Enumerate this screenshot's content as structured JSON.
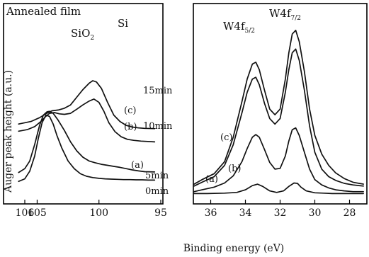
{
  "figure": {
    "title": "Annealed film",
    "ylabel": "Auger peak height (a.u.)",
    "xlabel": "Binding energy (eV)"
  },
  "chart_data": [
    {
      "type": "line",
      "panel": "Si 2p",
      "xlim": [
        106,
        95
      ],
      "xticks": [
        106,
        105,
        100,
        95
      ],
      "xtick_labels": [
        "106",
        "105",
        "100",
        "95"
      ],
      "peak_labels": [
        {
          "text": "SiO",
          "sub": "2",
          "x": 104.0
        },
        {
          "text": "Si",
          "x": 100.6
        }
      ],
      "series": [
        {
          "letter": "(c)",
          "name": "15min",
          "x": [
            106.5,
            105.5,
            104.8,
            104.3,
            103.8,
            103.3,
            102.8,
            102.3,
            101.8,
            101.3,
            100.8,
            100.5,
            100.2,
            99.8,
            99.3,
            98.8,
            98.3,
            97.8,
            97.3,
            96.8,
            96.3,
            95.5
          ],
          "y": [
            2.3,
            2.4,
            2.55,
            2.7,
            2.82,
            2.85,
            2.92,
            3.05,
            3.35,
            3.65,
            3.9,
            4.0,
            3.95,
            3.7,
            3.15,
            2.65,
            2.4,
            2.25,
            2.18,
            2.15,
            2.13,
            2.12
          ]
        },
        {
          "letter": "(b)",
          "name": "10min",
          "x": [
            106.5,
            105.8,
            105.2,
            104.7,
            104.3,
            104.0,
            103.6,
            103.2,
            102.8,
            102.3,
            101.8,
            101.3,
            100.8,
            100.4,
            100.0,
            99.6,
            99.2,
            98.7,
            98.2,
            97.7,
            97.2,
            96.6,
            95.5
          ],
          "y": [
            2.02,
            2.08,
            2.2,
            2.4,
            2.6,
            2.72,
            2.75,
            2.7,
            2.68,
            2.72,
            2.88,
            3.05,
            3.2,
            3.28,
            3.15,
            2.8,
            2.35,
            2.0,
            1.8,
            1.7,
            1.66,
            1.63,
            1.6
          ]
        },
        {
          "letter": "(a)",
          "name": "5min",
          "x": [
            106.5,
            106.0,
            105.6,
            105.2,
            104.8,
            104.5,
            104.2,
            104.0,
            103.7,
            103.3,
            102.8,
            102.3,
            101.8,
            101.3,
            100.8,
            100.3,
            99.8,
            99.3,
            98.8,
            98.3,
            97.8,
            97.3,
            96.8,
            96.3,
            95.5
          ],
          "y": [
            0.4,
            0.55,
            0.85,
            1.5,
            2.25,
            2.65,
            2.78,
            2.8,
            2.72,
            2.45,
            2.05,
            1.6,
            1.25,
            1.0,
            0.85,
            0.78,
            0.72,
            0.68,
            0.64,
            0.6,
            0.55,
            0.5,
            0.46,
            0.43,
            0.42
          ]
        },
        {
          "letter": "",
          "name": "0min",
          "x": [
            106.5,
            106.0,
            105.6,
            105.2,
            104.9,
            104.6,
            104.3,
            104.0,
            103.7,
            103.4,
            103.0,
            102.5,
            102.0,
            101.5,
            101.0,
            100.5,
            100.0,
            99.5,
            99.0,
            98.5,
            98.0,
            97.5,
            97.0,
            96.5,
            96.0,
            95.5
          ],
          "y": [
            0.05,
            0.15,
            0.45,
            1.05,
            1.75,
            2.35,
            2.65,
            2.6,
            2.3,
            1.85,
            1.35,
            0.85,
            0.55,
            0.35,
            0.25,
            0.2,
            0.17,
            0.15,
            0.14,
            0.13,
            0.12,
            0.12,
            0.11,
            0.11,
            0.1,
            0.1
          ]
        }
      ]
    },
    {
      "type": "line",
      "panel": "W 4f",
      "xlim": [
        37,
        27
      ],
      "xticks": [
        36,
        34,
        32,
        30,
        28
      ],
      "xtick_labels": [
        "36",
        "34",
        "32",
        "30",
        "28"
      ],
      "peak_labels": [
        {
          "text": "W4f",
          "sub": "5/2",
          "x": 33.5
        },
        {
          "text": "W4f",
          "sub": "7/2",
          "x": 31.2
        }
      ],
      "series": [
        {
          "letter": "(c)",
          "name": "15min",
          "x": [
            37.2,
            36.5,
            35.8,
            35.2,
            34.7,
            34.2,
            33.9,
            33.6,
            33.4,
            33.2,
            32.9,
            32.6,
            32.3,
            32.0,
            31.7,
            31.5,
            31.3,
            31.1,
            30.9,
            30.6,
            30.3,
            30.0,
            29.6,
            29.2,
            28.8,
            28.3,
            27.8,
            27.2
          ],
          "y": [
            0.3,
            0.42,
            0.58,
            0.9,
            1.55,
            2.5,
            3.1,
            3.5,
            3.55,
            3.35,
            2.8,
            2.3,
            2.15,
            2.3,
            3.1,
            3.8,
            4.3,
            4.4,
            4.1,
            3.3,
            2.3,
            1.6,
            1.1,
            0.8,
            0.6,
            0.45,
            0.35,
            0.3
          ]
        },
        {
          "letter": "(b)",
          "name": "10min",
          "x": [
            37.2,
            36.5,
            35.8,
            35.2,
            34.7,
            34.2,
            33.9,
            33.6,
            33.4,
            33.2,
            32.9,
            32.6,
            32.3,
            32.0,
            31.7,
            31.5,
            31.3,
            31.1,
            30.9,
            30.6,
            30.3,
            30.0,
            29.6,
            29.2,
            28.8,
            28.3,
            27.8,
            27.2
          ],
          "y": [
            0.25,
            0.35,
            0.5,
            0.8,
            1.35,
            2.2,
            2.75,
            3.1,
            3.15,
            2.95,
            2.45,
            2.05,
            1.9,
            2.05,
            2.75,
            3.35,
            3.8,
            3.9,
            3.6,
            2.8,
            1.85,
            1.15,
            0.7,
            0.5,
            0.4,
            0.32,
            0.28,
            0.25
          ]
        },
        {
          "letter": "(a)",
          "name": "5min",
          "x": [
            37.2,
            36.5,
            35.8,
            35.2,
            34.7,
            34.2,
            33.9,
            33.6,
            33.4,
            33.2,
            32.9,
            32.6,
            32.3,
            32.0,
            31.7,
            31.5,
            31.3,
            31.1,
            30.9,
            30.6,
            30.3,
            30.0,
            29.6,
            29.2,
            28.8,
            28.3,
            27.8,
            27.2
          ],
          "y": [
            0.1,
            0.15,
            0.22,
            0.33,
            0.52,
            0.9,
            1.25,
            1.55,
            1.62,
            1.55,
            1.22,
            0.88,
            0.7,
            0.72,
            1.05,
            1.45,
            1.75,
            1.8,
            1.6,
            1.15,
            0.7,
            0.42,
            0.28,
            0.2,
            0.15,
            0.12,
            0.1,
            0.1
          ]
        },
        {
          "letter": "",
          "name": "0min",
          "x": [
            37.2,
            36.2,
            35.2,
            34.5,
            34.0,
            33.6,
            33.3,
            33.0,
            32.6,
            32.2,
            31.8,
            31.5,
            31.2,
            31.0,
            30.8,
            30.5,
            30.0,
            29.5,
            29.0,
            28.5,
            28.0,
            27.2
          ],
          "y": [
            0.05,
            0.05,
            0.06,
            0.08,
            0.15,
            0.26,
            0.3,
            0.24,
            0.12,
            0.08,
            0.12,
            0.24,
            0.33,
            0.32,
            0.22,
            0.12,
            0.07,
            0.06,
            0.05,
            0.05,
            0.05,
            0.05
          ]
        }
      ]
    }
  ]
}
